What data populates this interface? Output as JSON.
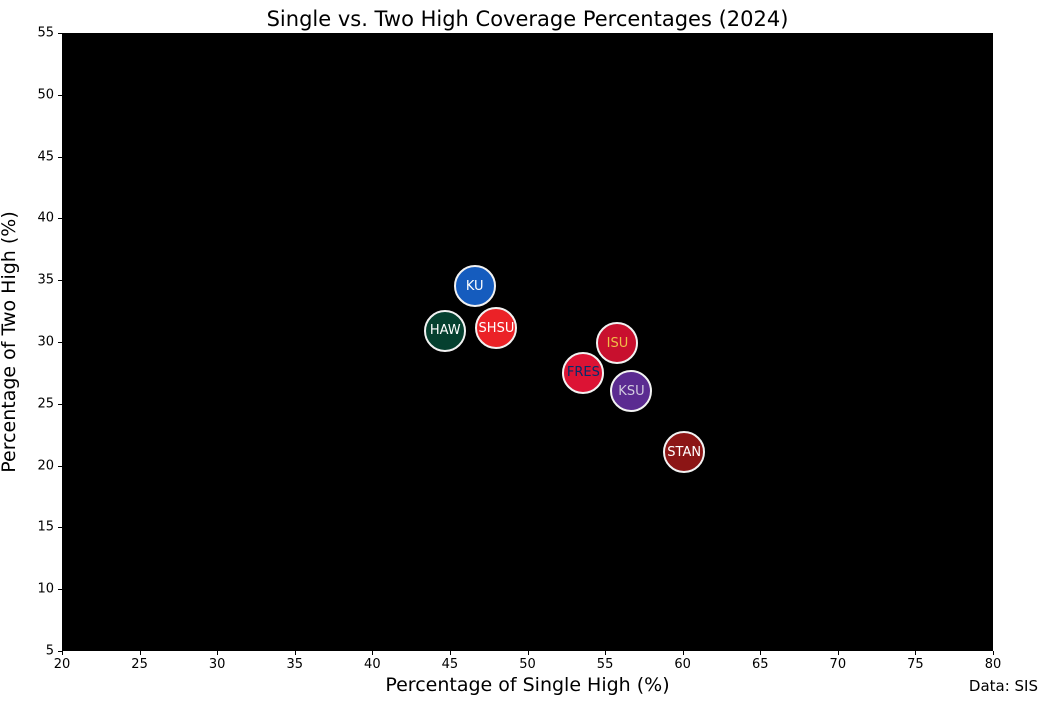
{
  "figure": {
    "title": "Single vs. Two High Coverage Percentages (2024)",
    "source_note": "Data: SIS"
  },
  "chart_data": {
    "type": "scatter",
    "title": "Single vs. Two High Coverage Percentages (2024)",
    "xlabel": "Percentage of Single High (%)",
    "ylabel": "Percentage of Two High (%)",
    "xlim": [
      20,
      80
    ],
    "ylim": [
      5,
      55
    ],
    "xticks": [
      20,
      25,
      30,
      35,
      40,
      45,
      50,
      55,
      60,
      65,
      70,
      75,
      80
    ],
    "yticks": [
      5,
      10,
      15,
      20,
      25,
      30,
      35,
      40,
      45,
      50,
      55
    ],
    "plot_background": "#000000",
    "figure_background": "#ffffff",
    "grid": false,
    "legend": false,
    "annotation": "Data: SIS",
    "marker_radius_px": 21,
    "marker_edge_color": "#F2F2F2",
    "points": [
      {
        "label": "KU",
        "x": 46.6,
        "y": 34.5,
        "fill": "#155CBE",
        "text": "#FFFFFF"
      },
      {
        "label": "HAW",
        "x": 44.7,
        "y": 30.9,
        "fill": "#05402F",
        "text": "#FFFFFF"
      },
      {
        "label": "SHSU",
        "x": 48.0,
        "y": 31.1,
        "fill": "#EB2227",
        "text": "#FFFFFF"
      },
      {
        "label": "ISU",
        "x": 55.8,
        "y": 29.9,
        "fill": "#C8102E",
        "text": "#F1BE48"
      },
      {
        "label": "FRES",
        "x": 53.6,
        "y": 27.5,
        "fill": "#DC1334",
        "text": "#002E6D"
      },
      {
        "label": "KSU",
        "x": 56.7,
        "y": 26.0,
        "fill": "#5B2B91",
        "text": "#D3CCE0"
      },
      {
        "label": "STAN",
        "x": 60.1,
        "y": 21.1,
        "fill": "#8C1515",
        "text": "#FFFFFF"
      }
    ]
  }
}
